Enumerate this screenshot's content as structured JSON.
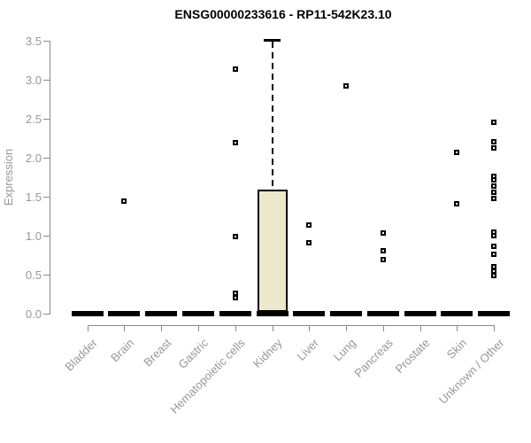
{
  "title": "ENSG00000233616 - RP11-542K23.10",
  "chart_data": {
    "type": "boxplot",
    "title": "ENSG00000233616 - RP11-542K23.10",
    "xlabel": "",
    "ylabel": "Expression",
    "ylim": [
      0,
      3.5
    ],
    "yticks": [
      0,
      0.5,
      1,
      1.5,
      2,
      2.5,
      3,
      3.5
    ],
    "ytick_labels": [
      "0.0",
      "0.5",
      "1.0",
      "1.5",
      "2.0",
      "2.5",
      "3.0",
      "3.5"
    ],
    "grid": false,
    "legend": false,
    "categories": [
      "Bladder",
      "Brain",
      "Breast",
      "Gastric",
      "Hematopoietic cells",
      "Kidney",
      "Liver",
      "Lung",
      "Pancreas",
      "Prostate",
      "Skin",
      "Unknown / Other"
    ],
    "boxes": [
      {
        "category": "Bladder",
        "whisker_low": 0,
        "q1": 0,
        "median": 0,
        "q3": 0,
        "whisker_high": 0
      },
      {
        "category": "Brain",
        "whisker_low": 0,
        "q1": 0,
        "median": 0,
        "q3": 0,
        "whisker_high": 0
      },
      {
        "category": "Breast",
        "whisker_low": 0,
        "q1": 0,
        "median": 0,
        "q3": 0,
        "whisker_high": 0
      },
      {
        "category": "Gastric",
        "whisker_low": 0,
        "q1": 0,
        "median": 0,
        "q3": 0,
        "whisker_high": 0
      },
      {
        "category": "Hematopoietic cells",
        "whisker_low": 0,
        "q1": 0,
        "median": 0,
        "q3": 0,
        "whisker_high": 0
      },
      {
        "category": "Kidney",
        "whisker_low": 0,
        "q1": 0,
        "median": 0,
        "q3": 1.59,
        "whisker_high": 3.5
      },
      {
        "category": "Liver",
        "whisker_low": 0,
        "q1": 0,
        "median": 0,
        "q3": 0,
        "whisker_high": 0
      },
      {
        "category": "Lung",
        "whisker_low": 0,
        "q1": 0,
        "median": 0,
        "q3": 0,
        "whisker_high": 0
      },
      {
        "category": "Pancreas",
        "whisker_low": 0,
        "q1": 0,
        "median": 0,
        "q3": 0,
        "whisker_high": 0
      },
      {
        "category": "Prostate",
        "whisker_low": 0,
        "q1": 0,
        "median": 0,
        "q3": 0,
        "whisker_high": 0
      },
      {
        "category": "Skin",
        "whisker_low": 0,
        "q1": 0,
        "median": 0,
        "q3": 0,
        "whisker_high": 0
      },
      {
        "category": "Unknown / Other",
        "whisker_low": 0,
        "q1": 0,
        "median": 0,
        "q3": 0,
        "whisker_high": 0
      }
    ],
    "outliers": [
      {
        "category": "Brain",
        "values": [
          1.44
        ]
      },
      {
        "category": "Hematopoietic cells",
        "values": [
          3.14,
          2.19,
          0.99,
          0.26,
          0.21
        ]
      },
      {
        "category": "Liver",
        "values": [
          1.14,
          0.91
        ]
      },
      {
        "category": "Lung",
        "values": [
          2.92
        ]
      },
      {
        "category": "Pancreas",
        "values": [
          1.03,
          0.81,
          0.69
        ]
      },
      {
        "category": "Skin",
        "values": [
          2.07,
          1.41
        ]
      },
      {
        "category": "Unknown / Other",
        "values": [
          2.45,
          2.2,
          2.13,
          1.76,
          1.72,
          1.64,
          1.56,
          1.48,
          1.05,
          1.0,
          0.86,
          0.76,
          0.6,
          0.55,
          0.49
        ]
      }
    ],
    "colors": {
      "box_fill": "#EDE8CC",
      "box_border": "#000000",
      "axis_line": "#8A8A8A",
      "tick_label": "#979797",
      "title_text": "#000000"
    }
  }
}
